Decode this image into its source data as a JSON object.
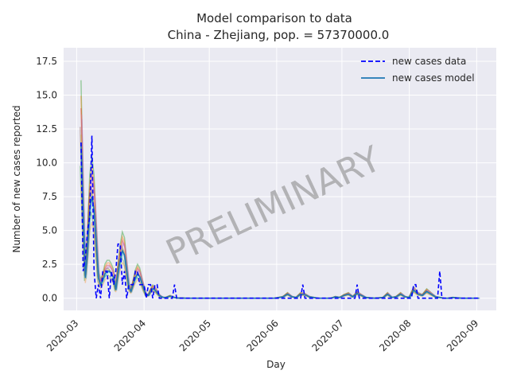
{
  "chart_data": {
    "type": "line",
    "title": "Model comparison to data",
    "subtitle": "China - Zhejiang, pop. = 57370000.0",
    "xlabel": "Day",
    "ylabel": "Number of new cases reported",
    "ylim": [
      -0.9,
      18.5
    ],
    "yticks": [
      0.0,
      2.5,
      5.0,
      7.5,
      10.0,
      12.5,
      15.0,
      17.5
    ],
    "ytick_labels": [
      "0.0",
      "2.5",
      "5.0",
      "7.5",
      "10.0",
      "12.5",
      "15.0",
      "17.5"
    ],
    "xlim": [
      "2020-02-24",
      "2020-09-10"
    ],
    "xticks": [
      "2020-03-01",
      "2020-04-01",
      "2020-05-01",
      "2020-06-01",
      "2020-07-01",
      "2020-08-01",
      "2020-09-01"
    ],
    "xtick_labels": [
      "2020-03",
      "2020-04",
      "2020-05",
      "2020-06",
      "2020-07",
      "2020-08",
      "2020-09"
    ],
    "grid": true,
    "legend_position": "top-right",
    "watermark": "PRELIMINARY",
    "legend": [
      {
        "label": "new cases data",
        "style": "dashed",
        "color": "#0000ff"
      },
      {
        "label": "new cases model",
        "style": "solid",
        "color": "#1f77b4"
      }
    ],
    "series": [
      {
        "name": "new cases data",
        "style": "dashed",
        "color": "#0000ff",
        "x": [
          "2020-03-03",
          "2020-03-04",
          "2020-03-05",
          "2020-03-06",
          "2020-03-07",
          "2020-03-08",
          "2020-03-09",
          "2020-03-10",
          "2020-03-11",
          "2020-03-12",
          "2020-03-13",
          "2020-03-14",
          "2020-03-15",
          "2020-03-16",
          "2020-03-17",
          "2020-03-18",
          "2020-03-19",
          "2020-03-20",
          "2020-03-21",
          "2020-03-22",
          "2020-03-23",
          "2020-03-24",
          "2020-03-25",
          "2020-03-26",
          "2020-03-27",
          "2020-03-28",
          "2020-03-29",
          "2020-03-30",
          "2020-03-31",
          "2020-04-01",
          "2020-04-02",
          "2020-04-03",
          "2020-04-04",
          "2020-04-06",
          "2020-04-07",
          "2020-04-08",
          "2020-04-09",
          "2020-04-10",
          "2020-04-11",
          "2020-04-12",
          "2020-04-13",
          "2020-04-14",
          "2020-04-15",
          "2020-04-16",
          "2020-06-12",
          "2020-06-13",
          "2020-06-14",
          "2020-07-07",
          "2020-07-08",
          "2020-07-09",
          "2020-08-02",
          "2020-08-03",
          "2020-08-04",
          "2020-08-05",
          "2020-08-14",
          "2020-08-15",
          "2020-08-16",
          "2020-08-17"
        ],
        "y": [
          11.5,
          2,
          3,
          5,
          6,
          12,
          2,
          0,
          1,
          0,
          2,
          2,
          2,
          0,
          2,
          1,
          2,
          4,
          4,
          1,
          2,
          0,
          1,
          1,
          1,
          2,
          2,
          1,
          1,
          1,
          0,
          1,
          1,
          1,
          1,
          0,
          0,
          0,
          0,
          0,
          0,
          0,
          1,
          0,
          0,
          1,
          0,
          0,
          1,
          0,
          0,
          1,
          1,
          0,
          0,
          2,
          0,
          0
        ]
      },
      {
        "name": "new cases model",
        "style": "solid",
        "color": "#1f77b4",
        "x": [
          "2020-03-03",
          "2020-03-04",
          "2020-03-05",
          "2020-03-06",
          "2020-03-07",
          "2020-03-08",
          "2020-03-09",
          "2020-03-10",
          "2020-03-11",
          "2020-03-12",
          "2020-03-13",
          "2020-03-14",
          "2020-03-15",
          "2020-03-16",
          "2020-03-17",
          "2020-03-18",
          "2020-03-19",
          "2020-03-20",
          "2020-03-21",
          "2020-03-22",
          "2020-03-23",
          "2020-03-24",
          "2020-03-25",
          "2020-03-26",
          "2020-03-27",
          "2020-03-28",
          "2020-03-29",
          "2020-03-30",
          "2020-03-31",
          "2020-04-01",
          "2020-04-02",
          "2020-04-03",
          "2020-04-04",
          "2020-04-05",
          "2020-04-06",
          "2020-04-07",
          "2020-04-08",
          "2020-04-09",
          "2020-04-10",
          "2020-04-11",
          "2020-04-12",
          "2020-04-13",
          "2020-04-14",
          "2020-04-15",
          "2020-04-16",
          "2020-04-17",
          "2020-04-18",
          "2020-04-19",
          "2020-04-20",
          "2020-04-25",
          "2020-05-10",
          "2020-05-25",
          "2020-05-31",
          "2020-06-02",
          "2020-06-04",
          "2020-06-06",
          "2020-06-08",
          "2020-06-10",
          "2020-06-12",
          "2020-06-14",
          "2020-06-16",
          "2020-06-20",
          "2020-06-26",
          "2020-06-28",
          "2020-06-30",
          "2020-07-02",
          "2020-07-04",
          "2020-07-06",
          "2020-07-08",
          "2020-07-10",
          "2020-07-12",
          "2020-07-16",
          "2020-07-20",
          "2020-07-22",
          "2020-07-24",
          "2020-07-26",
          "2020-07-28",
          "2020-07-30",
          "2020-08-01",
          "2020-08-03",
          "2020-08-05",
          "2020-08-07",
          "2020-08-09",
          "2020-08-11",
          "2020-08-13",
          "2020-08-15",
          "2020-08-17",
          "2020-08-19",
          "2020-08-21",
          "2020-08-25",
          "2020-09-02"
        ],
        "y": [
          11.5,
          6,
          1.5,
          3.5,
          6.5,
          7.5,
          6.5,
          4,
          1.5,
          1,
          1.3,
          1.8,
          2,
          2,
          1.8,
          1.5,
          0.6,
          1.8,
          2.8,
          3.5,
          3.2,
          2,
          0.8,
          0.5,
          1,
          1.5,
          1.8,
          1.6,
          1.1,
          0.6,
          0.2,
          0.2,
          0.5,
          0.7,
          0.6,
          0.4,
          0.2,
          0.1,
          0.05,
          0.05,
          0.1,
          0.15,
          0.1,
          0.05,
          0.02,
          0.01,
          0.01,
          0.01,
          0,
          0,
          0,
          0,
          0,
          0.05,
          0.1,
          0.3,
          0.1,
          0.05,
          0.3,
          0.25,
          0.1,
          0,
          0,
          0.1,
          0.05,
          0.2,
          0.3,
          0.1,
          0.35,
          0.2,
          0.05,
          0,
          0.05,
          0.3,
          0.05,
          0.1,
          0.3,
          0.1,
          0.05,
          0.6,
          0.3,
          0.2,
          0.5,
          0.3,
          0.1,
          0.05,
          0,
          0,
          0.05,
          0,
          0
        ]
      }
    ]
  }
}
